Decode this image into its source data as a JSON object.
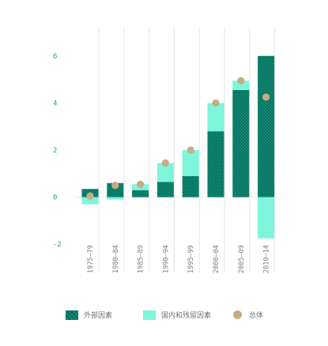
{
  "chart_data": {
    "type": "bar",
    "stacked": true,
    "categories": [
      "1975–79",
      "1980–84",
      "1985–89",
      "1990–94",
      "1995–99",
      "2000–04",
      "2005–09",
      "2010–14"
    ],
    "series": [
      {
        "name": "外部因素",
        "values": [
          0.35,
          0.6,
          0.3,
          0.65,
          0.9,
          2.8,
          4.55,
          6.0
        ]
      },
      {
        "name": "国内和残留因素",
        "values": [
          -0.3,
          -0.1,
          0.25,
          0.8,
          1.1,
          1.2,
          0.4,
          -1.75
        ]
      }
    ],
    "overlay": {
      "name": "总体",
      "type": "scatter",
      "values": [
        0.05,
        0.5,
        0.55,
        1.45,
        2.0,
        4.0,
        4.95,
        4.25
      ]
    },
    "yticks": [
      -2,
      0,
      2,
      4,
      6
    ],
    "ylim": [
      -3.2,
      7.2
    ],
    "grid": true,
    "legend_position": "bottom",
    "colors": {
      "external": "#0f8f7a",
      "domestic": "#7ff5dc",
      "total": "#c5ac84",
      "ytick": "#2a9aa0"
    }
  }
}
